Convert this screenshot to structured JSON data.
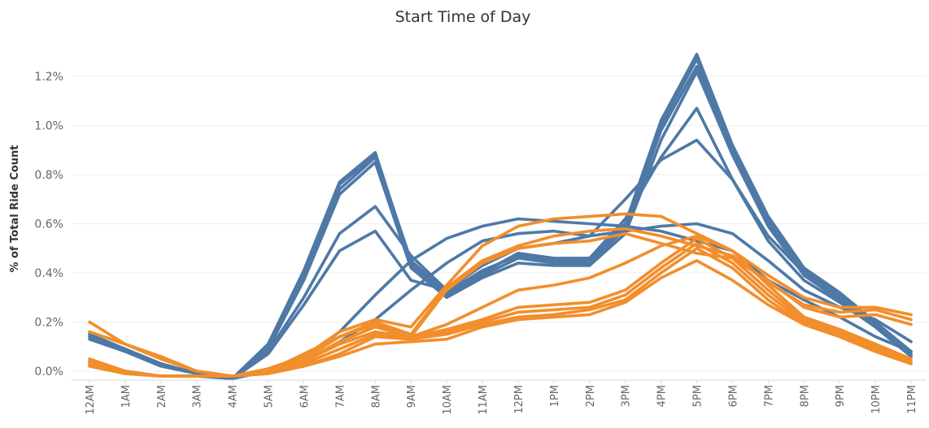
{
  "chart_data": {
    "type": "line",
    "title": "Start Time of Day",
    "ylabel": "% of Total Ride Count",
    "xlabel": "",
    "ylim": [
      -0.0004,
      0.0136
    ],
    "yticks": [
      0.0,
      0.002,
      0.004,
      0.006,
      0.008,
      0.01,
      0.012
    ],
    "ytick_labels": [
      "0.0%",
      "0.2%",
      "0.4%",
      "0.6%",
      "0.8%",
      "1.0%",
      "1.2%"
    ],
    "grid": true,
    "legend": "none",
    "categories": [
      "12AM",
      "1AM",
      "2AM",
      "3AM",
      "4AM",
      "5AM",
      "6AM",
      "7AM",
      "8AM",
      "9AM",
      "10AM",
      "11AM",
      "12PM",
      "1PM",
      "2PM",
      "3PM",
      "4PM",
      "5PM",
      "6PM",
      "7PM",
      "8PM",
      "9PM",
      "10PM",
      "11PM"
    ],
    "colors": {
      "blue": "#4e79a7",
      "orange": "#f28e2b"
    },
    "series": [
      {
        "color": "blue",
        "values": [
          0.0015,
          0.0009,
          0.0003,
          -0.0001,
          -0.0003,
          0.0011,
          0.0041,
          0.0077,
          0.0089,
          0.0044,
          0.0031,
          0.004,
          0.0048,
          0.0045,
          0.0046,
          0.006,
          0.0102,
          0.0129,
          0.0092,
          0.0063,
          0.0042,
          0.0032,
          0.002,
          0.0007
        ]
      },
      {
        "color": "blue",
        "values": [
          0.0015,
          0.0009,
          0.0003,
          -0.0001,
          -0.0003,
          0.001,
          0.004,
          0.0076,
          0.0088,
          0.0045,
          0.0032,
          0.0041,
          0.0047,
          0.0045,
          0.0045,
          0.0059,
          0.01,
          0.0127,
          0.0091,
          0.0062,
          0.0041,
          0.0031,
          0.002,
          0.0008
        ]
      },
      {
        "color": "blue",
        "values": [
          0.0014,
          0.0009,
          0.0003,
          -0.0001,
          -0.0003,
          0.001,
          0.0039,
          0.0074,
          0.0087,
          0.0043,
          0.0031,
          0.0039,
          0.0046,
          0.0044,
          0.0044,
          0.0058,
          0.0098,
          0.0124,
          0.009,
          0.0061,
          0.004,
          0.003,
          0.0019,
          0.0007
        ]
      },
      {
        "color": "blue",
        "values": [
          0.0014,
          0.0009,
          0.0003,
          -0.0001,
          -0.0003,
          0.0009,
          0.0037,
          0.0072,
          0.0085,
          0.0042,
          0.003,
          0.0038,
          0.0044,
          0.0043,
          0.0043,
          0.0056,
          0.0094,
          0.0122,
          0.0088,
          0.0059,
          0.0039,
          0.0029,
          0.0018,
          0.0006
        ]
      },
      {
        "color": "blue",
        "values": [
          0.0014,
          0.0008,
          0.0003,
          -0.0001,
          -0.0003,
          0.0008,
          0.003,
          0.0056,
          0.0067,
          0.0047,
          0.0033,
          0.004,
          0.0048,
          0.0046,
          0.0046,
          0.0062,
          0.0087,
          0.0107,
          0.0078,
          0.0053,
          0.0037,
          0.0028,
          0.0018,
          0.0006
        ]
      },
      {
        "color": "blue",
        "values": [
          0.0013,
          0.0008,
          0.0002,
          -0.0001,
          -0.0003,
          0.0007,
          0.0027,
          0.0049,
          0.0057,
          0.0037,
          0.0033,
          0.0043,
          0.005,
          0.0052,
          0.0055,
          0.007,
          0.0086,
          0.0094,
          0.0078,
          0.0055,
          0.004,
          0.003,
          0.0019,
          0.0007
        ]
      },
      {
        "color": "blue",
        "values": [
          0.0004,
          0.0,
          -0.0002,
          -0.0002,
          -0.0003,
          0.0,
          0.0005,
          0.0016,
          0.0031,
          0.0045,
          0.0054,
          0.0059,
          0.0062,
          0.0061,
          0.006,
          0.0059,
          0.0057,
          0.0053,
          0.0049,
          0.0037,
          0.0029,
          0.0022,
          0.0014,
          0.0008
        ]
      },
      {
        "color": "blue",
        "values": [
          0.0003,
          -0.0001,
          -0.0002,
          -0.0002,
          -0.0003,
          0.0,
          0.0004,
          0.0012,
          0.0021,
          0.0033,
          0.0044,
          0.0053,
          0.0056,
          0.0057,
          0.0055,
          0.0057,
          0.0059,
          0.006,
          0.0056,
          0.0045,
          0.0033,
          0.0026,
          0.0021,
          0.0012
        ]
      },
      {
        "color": "orange",
        "values": [
          0.002,
          0.0011,
          0.0005,
          0.0,
          -0.0002,
          0.0001,
          0.0006,
          0.0016,
          0.0021,
          0.0018,
          0.0035,
          0.0051,
          0.0059,
          0.0062,
          0.0063,
          0.0064,
          0.0063,
          0.0056,
          0.0049,
          0.0039,
          0.003,
          0.0026,
          0.0026,
          0.0023
        ]
      },
      {
        "color": "orange",
        "values": [
          0.0016,
          0.0011,
          0.0006,
          0.0,
          -0.0002,
          0.0,
          0.0005,
          0.0014,
          0.002,
          0.0015,
          0.0034,
          0.0045,
          0.0051,
          0.0055,
          0.0057,
          0.0058,
          0.0055,
          0.0051,
          0.0047,
          0.0036,
          0.0027,
          0.0024,
          0.0025,
          0.0021
        ]
      },
      {
        "color": "orange",
        "values": [
          0.0016,
          0.0011,
          0.0005,
          0.0,
          -0.0002,
          0.0,
          0.0004,
          0.0012,
          0.0018,
          0.0014,
          0.0033,
          0.0044,
          0.005,
          0.0052,
          0.0053,
          0.0056,
          0.0052,
          0.0048,
          0.0046,
          0.0037,
          0.0026,
          0.0022,
          0.0023,
          0.0019
        ]
      },
      {
        "color": "orange",
        "values": [
          0.0005,
          0.0,
          -0.0002,
          -0.0002,
          -0.0002,
          0.0,
          0.0007,
          0.0014,
          0.0019,
          0.0014,
          0.0019,
          0.0026,
          0.0033,
          0.0035,
          0.0038,
          0.0044,
          0.0051,
          0.0055,
          0.0049,
          0.0035,
          0.0022,
          0.0017,
          0.0011,
          0.0005
        ]
      },
      {
        "color": "orange",
        "values": [
          0.0004,
          0.0,
          -0.0002,
          -0.0002,
          -0.0002,
          -0.0001,
          0.0004,
          0.0011,
          0.0016,
          0.0014,
          0.0017,
          0.0021,
          0.0026,
          0.0027,
          0.0028,
          0.0033,
          0.0044,
          0.0054,
          0.0046,
          0.0033,
          0.0021,
          0.0016,
          0.001,
          0.0004
        ]
      },
      {
        "color": "orange",
        "values": [
          0.0003,
          -0.0001,
          -0.0002,
          -0.0002,
          -0.0002,
          -0.0001,
          0.0003,
          0.0009,
          0.0015,
          0.0013,
          0.0016,
          0.002,
          0.0024,
          0.0025,
          0.0026,
          0.0031,
          0.0042,
          0.0052,
          0.0044,
          0.0031,
          0.002,
          0.0015,
          0.0009,
          0.0004
        ]
      },
      {
        "color": "orange",
        "values": [
          0.0002,
          -0.0001,
          -0.0002,
          -0.0002,
          -0.0002,
          -0.0001,
          0.0002,
          0.0007,
          0.0014,
          0.0013,
          0.0015,
          0.0019,
          0.0022,
          0.0023,
          0.0025,
          0.0029,
          0.004,
          0.005,
          0.0042,
          0.0029,
          0.0019,
          0.0014,
          0.0008,
          0.0003
        ]
      },
      {
        "color": "orange",
        "values": [
          0.0002,
          -0.0001,
          -0.0002,
          -0.0002,
          -0.0002,
          -0.0001,
          0.0002,
          0.0006,
          0.0011,
          0.0012,
          0.0013,
          0.0018,
          0.0021,
          0.0022,
          0.0023,
          0.0028,
          0.0038,
          0.0045,
          0.0037,
          0.0027,
          0.0019,
          0.0014,
          0.0008,
          0.0003
        ]
      }
    ]
  }
}
